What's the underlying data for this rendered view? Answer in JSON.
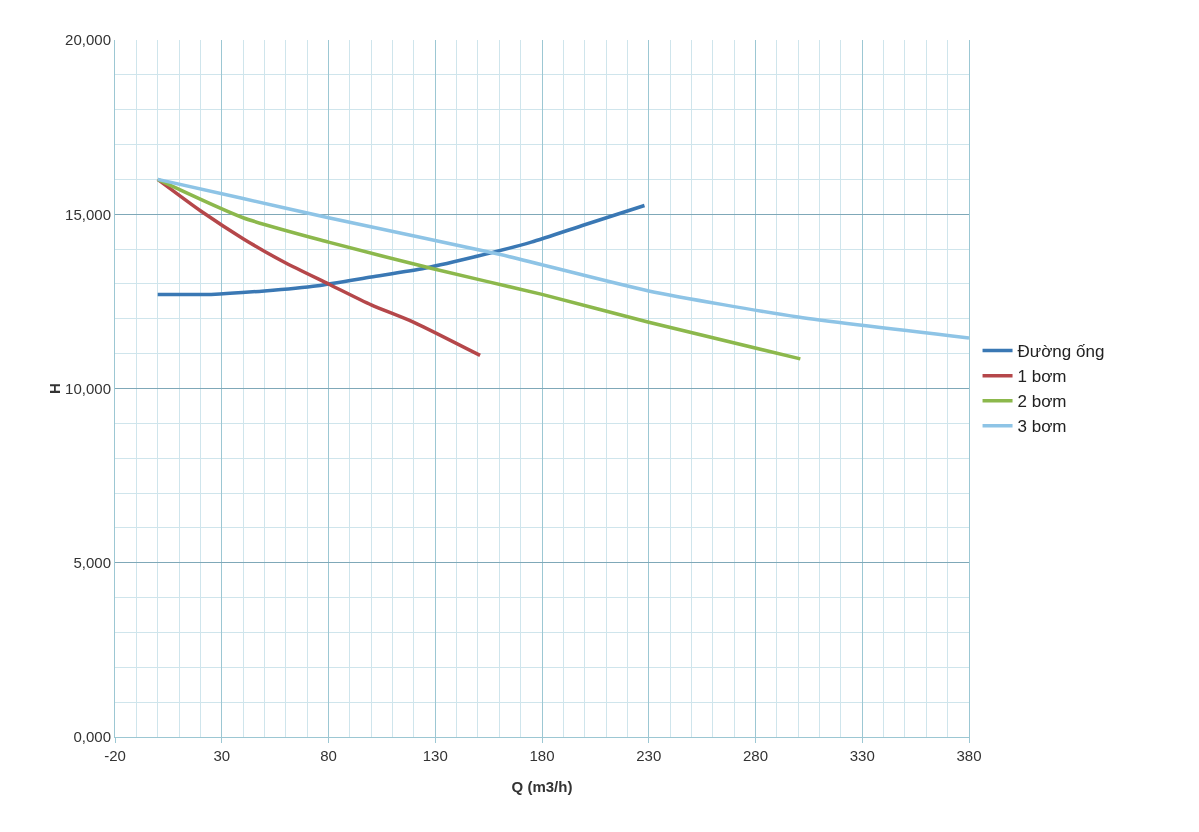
{
  "chart_data": {
    "type": "line",
    "xlabel": "Q (m3/h)",
    "ylabel": "H",
    "xlim": [
      -20,
      380
    ],
    "xticks": [
      -20,
      30,
      80,
      130,
      180,
      230,
      280,
      330,
      380
    ],
    "ylim": [
      0,
      20000
    ],
    "yticks": [
      {
        "value": 0,
        "label": "0,000"
      },
      {
        "value": 5000,
        "label": "5,000"
      },
      {
        "value": 10000,
        "label": "10,000"
      },
      {
        "value": 15000,
        "label": "15,000"
      },
      {
        "value": 20000,
        "label": "20,000"
      }
    ],
    "grid": true,
    "legend": "right",
    "marker": "none",
    "line_style": "solid",
    "series": [
      {
        "name": "Đường ống",
        "color": "#3a78b4",
        "x": [
          0,
          25,
          50,
          75,
          100,
          125,
          150,
          175,
          200,
          228
        ],
        "values": [
          12700,
          12700,
          12800,
          12950,
          13200,
          13450,
          13800,
          14200,
          14700,
          15250
        ]
      },
      {
        "name": "1 bơm",
        "color": "#b5474a",
        "x": [
          0,
          20,
          40,
          60,
          80,
          100,
          120,
          151
        ],
        "values": [
          16000,
          15100,
          14300,
          13600,
          13000,
          12400,
          11900,
          10950
        ]
      },
      {
        "name": "2 bơm",
        "color": "#8cb84c",
        "x": [
          0,
          40,
          80,
          128,
          180,
          230,
          301
        ],
        "values": [
          16000,
          14900,
          14200,
          13450,
          12700,
          11900,
          10850
        ]
      },
      {
        "name": "3 bơm",
        "color": "#8ec4e6",
        "x": [
          0,
          40,
          80,
          160,
          230,
          300,
          380
        ],
        "values": [
          16000,
          15450,
          14900,
          13850,
          12800,
          12050,
          11450
        ]
      }
    ]
  }
}
